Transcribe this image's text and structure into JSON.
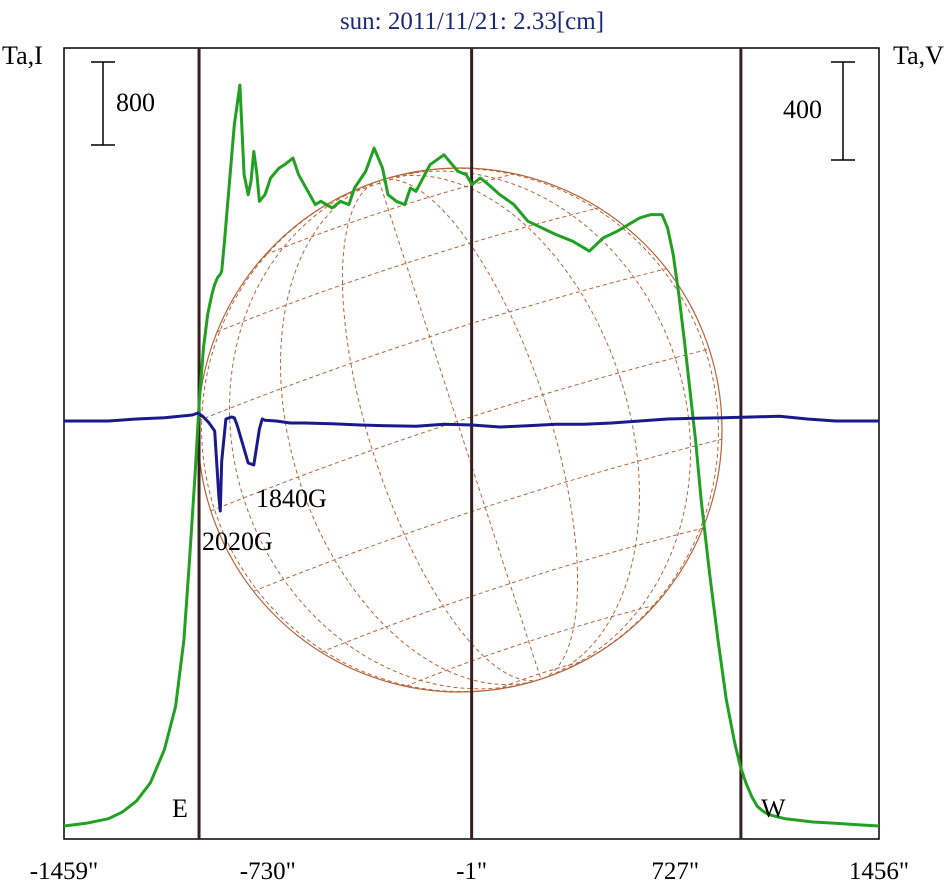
{
  "chart_data": {
    "type": "line",
    "title": "sun: 2011/11/21: 2.33[cm]",
    "left_axis_label": "Ta,I",
    "right_axis_label": "Ta,V",
    "left_scale_bar": "800",
    "right_scale_bar": "400",
    "xlim": [
      -1459,
      1456
    ],
    "x_tick_labels": [
      "-1459\"",
      "-730\"",
      "-1\"",
      "727\"",
      "1456\""
    ],
    "x_ticks": [
      -1459,
      -730,
      -1,
      727,
      1456
    ],
    "limb_labels": {
      "east": "E",
      "west": "W"
    },
    "limb_positions": [
      -976,
      -1,
      962
    ],
    "annotations": [
      "1840G",
      "2020G"
    ],
    "colors": {
      "intensity": "#22a022",
      "polarization": "#1a1a8c",
      "disk": "#b5643a",
      "limb_lines": "#3a1f1f",
      "title": "#1a2a78"
    },
    "series": [
      {
        "key": "intensity",
        "x": [
          -1459,
          -1380,
          -1300,
          -1250,
          -1200,
          -1150,
          -1100,
          -1060,
          -1030,
          -1010,
          -990,
          -975,
          -960,
          -945,
          -930,
          -920,
          -910,
          -900,
          -895,
          -885,
          -870,
          -850,
          -830,
          -815,
          -800,
          -790,
          -780,
          -770,
          -760,
          -740,
          -720,
          -690,
          -670,
          -640,
          -620,
          -600,
          -580,
          -560,
          -540,
          -500,
          -470,
          -440,
          -420,
          -380,
          -350,
          -320,
          -300,
          -270,
          -240,
          -220,
          -200,
          -150,
          -100,
          -50,
          -20,
          0,
          30,
          60,
          100,
          150,
          200,
          250,
          300,
          360,
          420,
          470,
          520,
          560,
          600,
          640,
          680,
          700,
          720,
          740,
          760,
          780,
          800,
          820,
          850,
          880,
          910,
          940,
          960,
          980,
          1000,
          1020,
          1040,
          1060,
          1090,
          1120,
          1160,
          1220,
          1300,
          1380,
          1456
        ],
        "y": [
          0.0,
          8,
          22,
          42,
          75,
          130,
          230,
          360,
          560,
          800,
          1060,
          1280,
          1440,
          1540,
          1600,
          1630,
          1650,
          1660,
          1670,
          1760,
          1910,
          2110,
          2230,
          1960,
          1900,
          1940,
          2030,
          1970,
          1880,
          1900,
          1950,
          1980,
          1990,
          2010,
          1960,
          1930,
          1900,
          1870,
          1880,
          1860,
          1880,
          1870,
          1920,
          1970,
          2040,
          1980,
          1900,
          1880,
          1870,
          1920,
          1910,
          1990,
          2020,
          1970,
          1960,
          1930,
          1950,
          1930,
          1900,
          1870,
          1820,
          1800,
          1780,
          1760,
          1730,
          1770,
          1790,
          1810,
          1830,
          1840,
          1840,
          1800,
          1720,
          1600,
          1460,
          1310,
          1160,
          980,
          760,
          560,
          380,
          250,
          180,
          130,
          90,
          60,
          45,
          35,
          28,
          22,
          18,
          12,
          8,
          4,
          0
        ]
      },
      {
        "key": "polarization",
        "x": [
          -1459,
          -1300,
          -1200,
          -1100,
          -1000,
          -980,
          -960,
          -940,
          -920,
          -905,
          -900,
          -895,
          -880,
          -860,
          -850,
          -840,
          -800,
          -780,
          -760,
          -750,
          -740,
          -700,
          -650,
          -600,
          -500,
          -400,
          -300,
          -200,
          -100,
          0,
          100,
          200,
          300,
          400,
          500,
          600,
          700,
          800,
          900,
          1000,
          1100,
          1200,
          1300,
          1456
        ],
        "y": [
          0,
          0,
          5,
          8,
          15,
          20,
          10,
          -5,
          -25,
          -190,
          -225,
          -100,
          5,
          10,
          8,
          -10,
          -105,
          -110,
          -20,
          5,
          2,
          0,
          -5,
          -5,
          -7,
          -10,
          -12,
          -13,
          -8,
          -10,
          -15,
          -12,
          -8,
          -8,
          -5,
          0,
          5,
          7,
          8,
          10,
          12,
          5,
          0,
          0
        ]
      }
    ]
  }
}
